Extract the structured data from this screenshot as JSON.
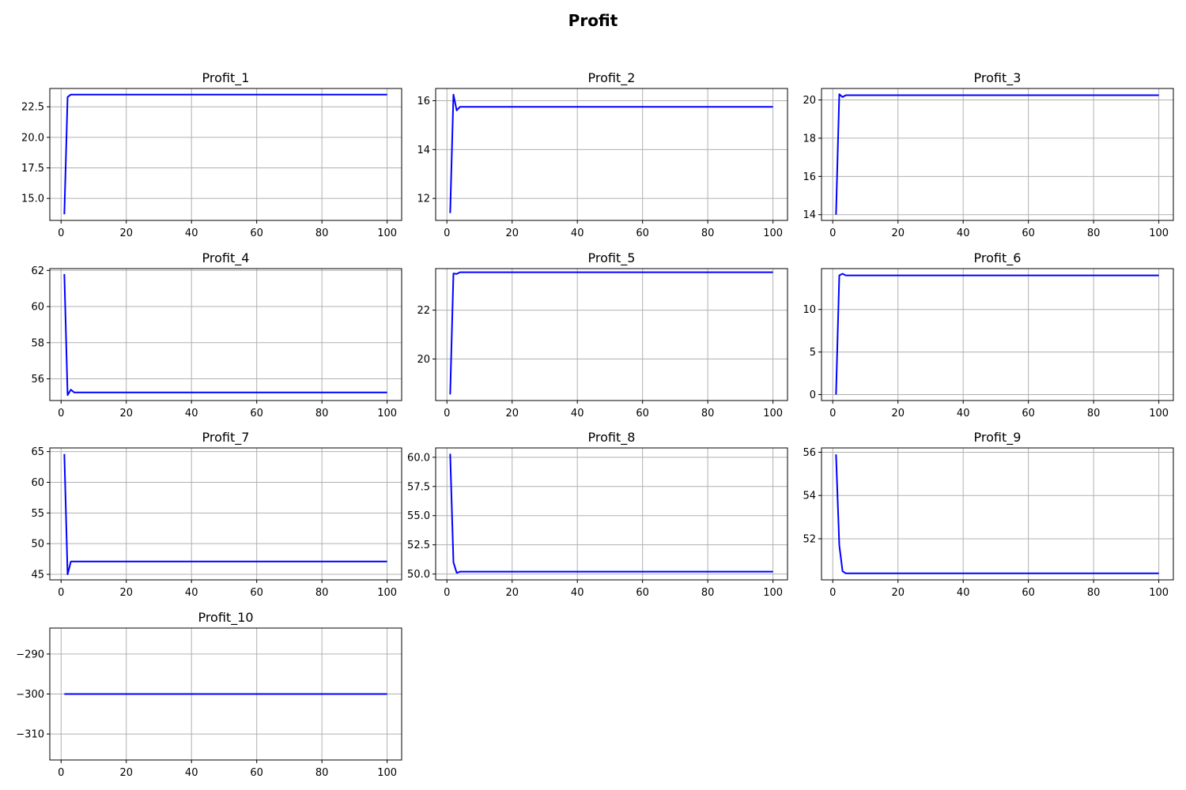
{
  "figure_title": "Profit",
  "colors": {
    "line": "#0000ff",
    "grid": "#b0b0b0"
  },
  "chart_data": [
    {
      "type": "line",
      "title": "Profit_1",
      "grid": true,
      "xlim": [
        1,
        100
      ],
      "xticks": [
        0,
        20,
        40,
        60,
        80,
        100
      ],
      "xtick_labels": [
        "0",
        "20",
        "40",
        "60",
        "80",
        "100"
      ],
      "ylim": [
        13.2,
        24.0
      ],
      "yticks": [
        15.0,
        17.5,
        20.0,
        22.5
      ],
      "ytick_labels": [
        "15.0",
        "17.5",
        "20.0",
        "22.5"
      ],
      "series": [
        {
          "points": [
            [
              1,
              13.7
            ],
            [
              2,
              23.3
            ],
            [
              3,
              23.5
            ],
            [
              100,
              23.5
            ]
          ]
        }
      ]
    },
    {
      "type": "line",
      "title": "Profit_2",
      "grid": true,
      "xlim": [
        1,
        100
      ],
      "xticks": [
        0,
        20,
        40,
        60,
        80,
        100
      ],
      "xtick_labels": [
        "0",
        "20",
        "40",
        "60",
        "80",
        "100"
      ],
      "ylim": [
        11.1,
        16.5
      ],
      "yticks": [
        12,
        14,
        16
      ],
      "ytick_labels": [
        "12",
        "14",
        "16"
      ],
      "series": [
        {
          "points": [
            [
              1,
              11.4
            ],
            [
              2,
              16.25
            ],
            [
              3,
              15.6
            ],
            [
              4,
              15.75
            ],
            [
              100,
              15.75
            ]
          ]
        }
      ]
    },
    {
      "type": "line",
      "title": "Profit_3",
      "grid": true,
      "xlim": [
        1,
        100
      ],
      "xticks": [
        0,
        20,
        40,
        60,
        80,
        100
      ],
      "xtick_labels": [
        "0",
        "20",
        "40",
        "60",
        "80",
        "100"
      ],
      "ylim": [
        13.7,
        20.6
      ],
      "yticks": [
        14,
        16,
        18,
        20
      ],
      "ytick_labels": [
        "14",
        "16",
        "18",
        "20"
      ],
      "series": [
        {
          "points": [
            [
              1,
              14.0
            ],
            [
              2,
              20.3
            ],
            [
              3,
              20.15
            ],
            [
              4,
              20.25
            ],
            [
              100,
              20.25
            ]
          ]
        }
      ]
    },
    {
      "type": "line",
      "title": "Profit_4",
      "grid": true,
      "xlim": [
        1,
        100
      ],
      "xticks": [
        0,
        20,
        40,
        60,
        80,
        100
      ],
      "xtick_labels": [
        "0",
        "20",
        "40",
        "60",
        "80",
        "100"
      ],
      "ylim": [
        54.8,
        62.1
      ],
      "yticks": [
        56,
        58,
        60,
        62
      ],
      "ytick_labels": [
        "56",
        "58",
        "60",
        "62"
      ],
      "series": [
        {
          "points": [
            [
              1,
              61.8
            ],
            [
              2,
              55.1
            ],
            [
              3,
              55.4
            ],
            [
              4,
              55.25
            ],
            [
              100,
              55.25
            ]
          ]
        }
      ]
    },
    {
      "type": "line",
      "title": "Profit_5",
      "grid": true,
      "xlim": [
        1,
        100
      ],
      "xticks": [
        0,
        20,
        40,
        60,
        80,
        100
      ],
      "xtick_labels": [
        "0",
        "20",
        "40",
        "60",
        "80",
        "100"
      ],
      "ylim": [
        18.3,
        23.7
      ],
      "yticks": [
        20,
        22
      ],
      "ytick_labels": [
        "20",
        "22"
      ],
      "series": [
        {
          "points": [
            [
              1,
              18.55
            ],
            [
              2,
              23.5
            ],
            [
              3,
              23.48
            ],
            [
              4,
              23.55
            ],
            [
              100,
              23.55
            ]
          ]
        }
      ]
    },
    {
      "type": "line",
      "title": "Profit_6",
      "grid": true,
      "xlim": [
        1,
        100
      ],
      "xticks": [
        0,
        20,
        40,
        60,
        80,
        100
      ],
      "xtick_labels": [
        "0",
        "20",
        "40",
        "60",
        "80",
        "100"
      ],
      "ylim": [
        -0.7,
        14.8
      ],
      "yticks": [
        0,
        5,
        10
      ],
      "ytick_labels": [
        "0",
        "5",
        "10"
      ],
      "series": [
        {
          "points": [
            [
              1,
              0.0
            ],
            [
              2,
              14.0
            ],
            [
              3,
              14.2
            ],
            [
              4,
              14.0
            ],
            [
              100,
              14.0
            ]
          ]
        }
      ]
    },
    {
      "type": "line",
      "title": "Profit_7",
      "grid": true,
      "xlim": [
        1,
        100
      ],
      "xticks": [
        0,
        20,
        40,
        60,
        80,
        100
      ],
      "xtick_labels": [
        "0",
        "20",
        "40",
        "60",
        "80",
        "100"
      ],
      "ylim": [
        44.1,
        65.6
      ],
      "yticks": [
        45,
        50,
        55,
        60,
        65
      ],
      "ytick_labels": [
        "45",
        "50",
        "55",
        "60",
        "65"
      ],
      "series": [
        {
          "points": [
            [
              1,
              64.6
            ],
            [
              2,
              45.0
            ],
            [
              3,
              47.1
            ],
            [
              100,
              47.1
            ]
          ]
        }
      ]
    },
    {
      "type": "line",
      "title": "Profit_8",
      "grid": true,
      "xlim": [
        1,
        100
      ],
      "xticks": [
        0,
        20,
        40,
        60,
        80,
        100
      ],
      "xtick_labels": [
        "0",
        "20",
        "40",
        "60",
        "80",
        "100"
      ],
      "ylim": [
        49.5,
        60.8
      ],
      "yticks": [
        50.0,
        52.5,
        55.0,
        57.5,
        60.0
      ],
      "ytick_labels": [
        "50.0",
        "52.5",
        "55.0",
        "57.5",
        "60.0"
      ],
      "series": [
        {
          "points": [
            [
              1,
              60.3
            ],
            [
              2,
              51.0
            ],
            [
              3,
              50.1
            ],
            [
              4,
              50.2
            ],
            [
              100,
              50.2
            ]
          ]
        }
      ]
    },
    {
      "type": "line",
      "title": "Profit_9",
      "grid": true,
      "xlim": [
        1,
        100
      ],
      "xticks": [
        0,
        20,
        40,
        60,
        80,
        100
      ],
      "xtick_labels": [
        "0",
        "20",
        "40",
        "60",
        "80",
        "100"
      ],
      "ylim": [
        50.1,
        56.2
      ],
      "yticks": [
        52,
        54,
        56
      ],
      "ytick_labels": [
        "52",
        "54",
        "56"
      ],
      "series": [
        {
          "points": [
            [
              1,
              55.9
            ],
            [
              2,
              51.7
            ],
            [
              3,
              50.5
            ],
            [
              4,
              50.4
            ],
            [
              100,
              50.4
            ]
          ]
        }
      ]
    },
    {
      "type": "line",
      "title": "Profit_10",
      "grid": true,
      "xlim": [
        1,
        100
      ],
      "xticks": [
        0,
        20,
        40,
        60,
        80,
        100
      ],
      "xtick_labels": [
        "0",
        "20",
        "40",
        "60",
        "80",
        "100"
      ],
      "ylim": [
        -316.5,
        -283.5
      ],
      "yticks": [
        -290,
        -300,
        -310
      ],
      "ytick_labels": [
        "−290",
        "−300",
        "−310"
      ],
      "series": [
        {
          "points": [
            [
              1,
              -300
            ],
            [
              100,
              -300
            ]
          ]
        }
      ]
    }
  ]
}
